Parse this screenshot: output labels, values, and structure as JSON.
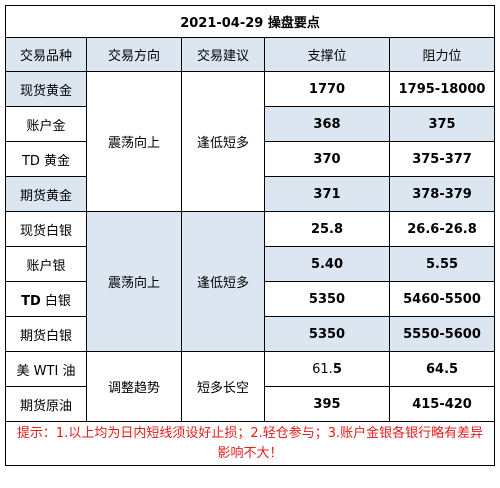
{
  "title": "2021-04-29 操盘要点",
  "headers": [
    "交易品种",
    "交易方向",
    "交易建议",
    "支撑位",
    "阻力位"
  ],
  "groups": [
    {
      "direction": "震荡向上",
      "advice": "逢低短多",
      "rows": [
        {
          "name": "现货黄金",
          "support": "1770",
          "resistance": "1795-18000"
        },
        {
          "name": "账户金",
          "support": "368",
          "resistance": "375"
        },
        {
          "name": "TD 黄金",
          "support": "370",
          "resistance": "375-377"
        },
        {
          "name": "期货黄金",
          "support": "371",
          "resistance": "378-379"
        }
      ]
    },
    {
      "direction": "震荡向上",
      "advice": "逢低短多",
      "rows": [
        {
          "name": "现货白银",
          "support": "25.8",
          "resistance": "26.6-26.8"
        },
        {
          "name": "账户银",
          "support": "5.40",
          "resistance": "5.55"
        },
        {
          "name_bold": "TD",
          "name_rest": " 白银",
          "support": "5350",
          "resistance": "5460-5500"
        },
        {
          "name": "期货白银",
          "support": "5350",
          "resistance": "5550-5600"
        }
      ]
    },
    {
      "direction": "调整趋势",
      "advice": "短多长空",
      "rows": [
        {
          "name": "美 WTI 油",
          "support_plain": "61.",
          "support_bold": "5",
          "resistance": "64.5"
        },
        {
          "name": "期货原油",
          "support": "395",
          "resistance": "415-420"
        }
      ]
    }
  ],
  "note": "提示：1.以上均为日内短线须设好止损；2.轻仓参与；3.账户金银各银行略有差异影响不大！",
  "colors": {
    "header_bg": "#dce6f1",
    "note_text": "#e31c1c",
    "border": "#000000"
  }
}
